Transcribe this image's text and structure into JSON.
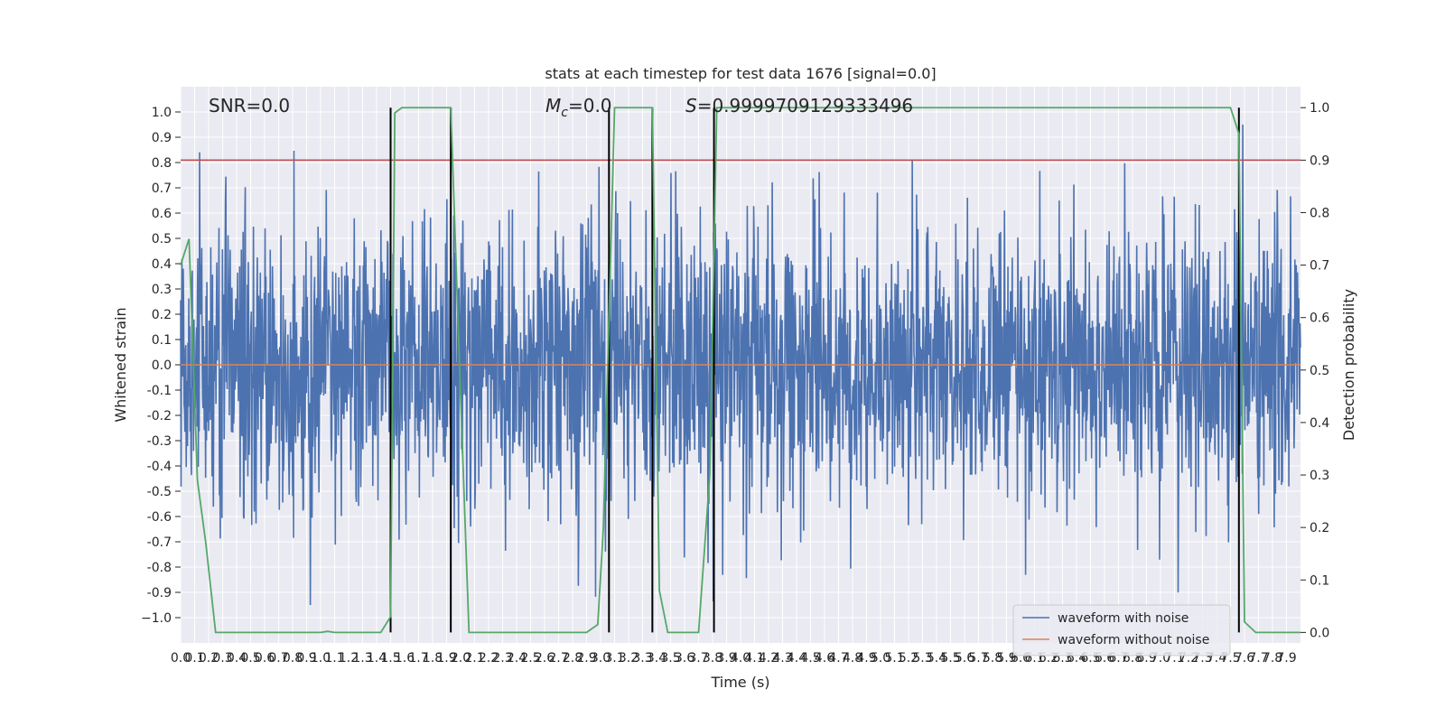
{
  "chart_data": {
    "type": "line",
    "title": "stats at each timestep for test data 1676 [signal=0.0]",
    "xlabel": "Time (s)",
    "ylabel": "Whitened strain",
    "ylabel_right": "Detection probability",
    "xlim": [
      0,
      8.0
    ],
    "ylim": [
      -1.1,
      1.1
    ],
    "ylim_right": [
      -0.02,
      1.04
    ],
    "x_ticks": [
      "0.0",
      "0.1",
      "0.2",
      "0.3",
      "0.4",
      "0.5",
      "0.6",
      "0.7",
      "0.8",
      "0.9",
      "1.0",
      "1.1",
      "1.2",
      "1.3",
      "1.4",
      "1.5",
      "1.6",
      "1.7",
      "1.8",
      "1.9",
      "2.0",
      "2.1",
      "2.2",
      "2.3",
      "2.4",
      "2.5",
      "2.6",
      "2.7",
      "2.8",
      "2.9",
      "3.0",
      "3.1",
      "3.2",
      "3.3",
      "3.4",
      "3.5",
      "3.6",
      "3.7",
      "3.8",
      "3.9",
      "4.0",
      "4.1",
      "4.2",
      "4.3",
      "4.4",
      "4.5",
      "4.6",
      "4.7",
      "4.8",
      "4.9",
      "5.0",
      "5.1",
      "5.2",
      "5.3",
      "5.4",
      "5.5",
      "5.6",
      "5.7",
      "5.8",
      "5.9",
      "6.0",
      "6.1",
      "6.2",
      "6.3",
      "6.4",
      "6.5",
      "6.6",
      "6.7",
      "6.8",
      "6.9",
      "7.0",
      "7.1",
      "7.2",
      "7.3",
      "7.4",
      "7.5",
      "7.6",
      "7.7",
      "7.8",
      "7.9"
    ],
    "y_ticks_left": [
      "1.0",
      "0.9",
      "0.8",
      "0.7",
      "0.6",
      "0.5",
      "0.4",
      "0.3",
      "0.2",
      "0.1",
      "0.0",
      "-0.1",
      "-0.2",
      "-0.3",
      "-0.4",
      "-0.5",
      "-0.6",
      "-0.7",
      "-0.8",
      "-0.9",
      "−1.0"
    ],
    "y_ticks_right": [
      "1.0",
      "0.9",
      "0.8",
      "0.7",
      "0.6",
      "0.5",
      "0.4",
      "0.3",
      "0.2",
      "0.1",
      "0.0"
    ],
    "annotations": {
      "snr": "SNR=0.0",
      "mc_symbol": "M",
      "mc_sub": "c",
      "mc_value": "=0.0",
      "s_symbol": "S",
      "s_value": "=0.9999709129333496"
    },
    "threshold": {
      "value": 0.9,
      "axis": "right",
      "color": "#c44e52"
    },
    "vlines": [
      1.5,
      1.93,
      3.06,
      3.37,
      3.81,
      7.56
    ],
    "series": [
      {
        "name": "waveform with noise",
        "color": "#4c72b0",
        "style": "dense-noise",
        "amplitude_envelope": 0.45,
        "peak_abs": 0.95
      },
      {
        "name": "waveform without noise",
        "color": "#dd8452",
        "x": [
          0,
          8.0
        ],
        "y": [
          0,
          0
        ]
      },
      {
        "color": "#55a868",
        "axis": "right",
        "x": [
          0,
          0.06,
          0.12,
          0.18,
          0.25,
          0.5,
          0.9,
          1.0,
          1.05,
          1.1,
          1.2,
          1.43,
          1.5,
          1.53,
          1.58,
          1.65,
          1.9,
          1.93,
          2.0,
          2.06,
          2.3,
          2.9,
          2.98,
          3.02,
          3.1,
          3.2,
          3.3,
          3.37,
          3.42,
          3.48,
          3.55,
          3.7,
          3.78,
          3.83,
          3.88,
          4.3,
          5.0,
          6.0,
          7.0,
          7.5,
          7.56,
          7.6,
          7.68,
          7.8,
          8.0
        ],
        "y": [
          0.7,
          0.75,
          0.29,
          0.17,
          0.0,
          0.0,
          0.0,
          0.0,
          0.002,
          0.0,
          0.0,
          0.0,
          0.03,
          0.99,
          1.0,
          1.0,
          1.0,
          1.0,
          0.45,
          0.0,
          0.0,
          0.0,
          0.015,
          0.2,
          1.0,
          1.0,
          1.0,
          1.0,
          0.08,
          0.0,
          0.0,
          0.0,
          0.3,
          1.0,
          1.0,
          1.0,
          1.0,
          1.0,
          1.0,
          1.0,
          0.95,
          0.02,
          0.0,
          0.0,
          0.0
        ]
      }
    ],
    "grid": true,
    "legend_position": "bottom-right"
  },
  "colors": {
    "plot_background": "#eaeaf2",
    "grid": "#ffffff",
    "vline": "#000000"
  }
}
